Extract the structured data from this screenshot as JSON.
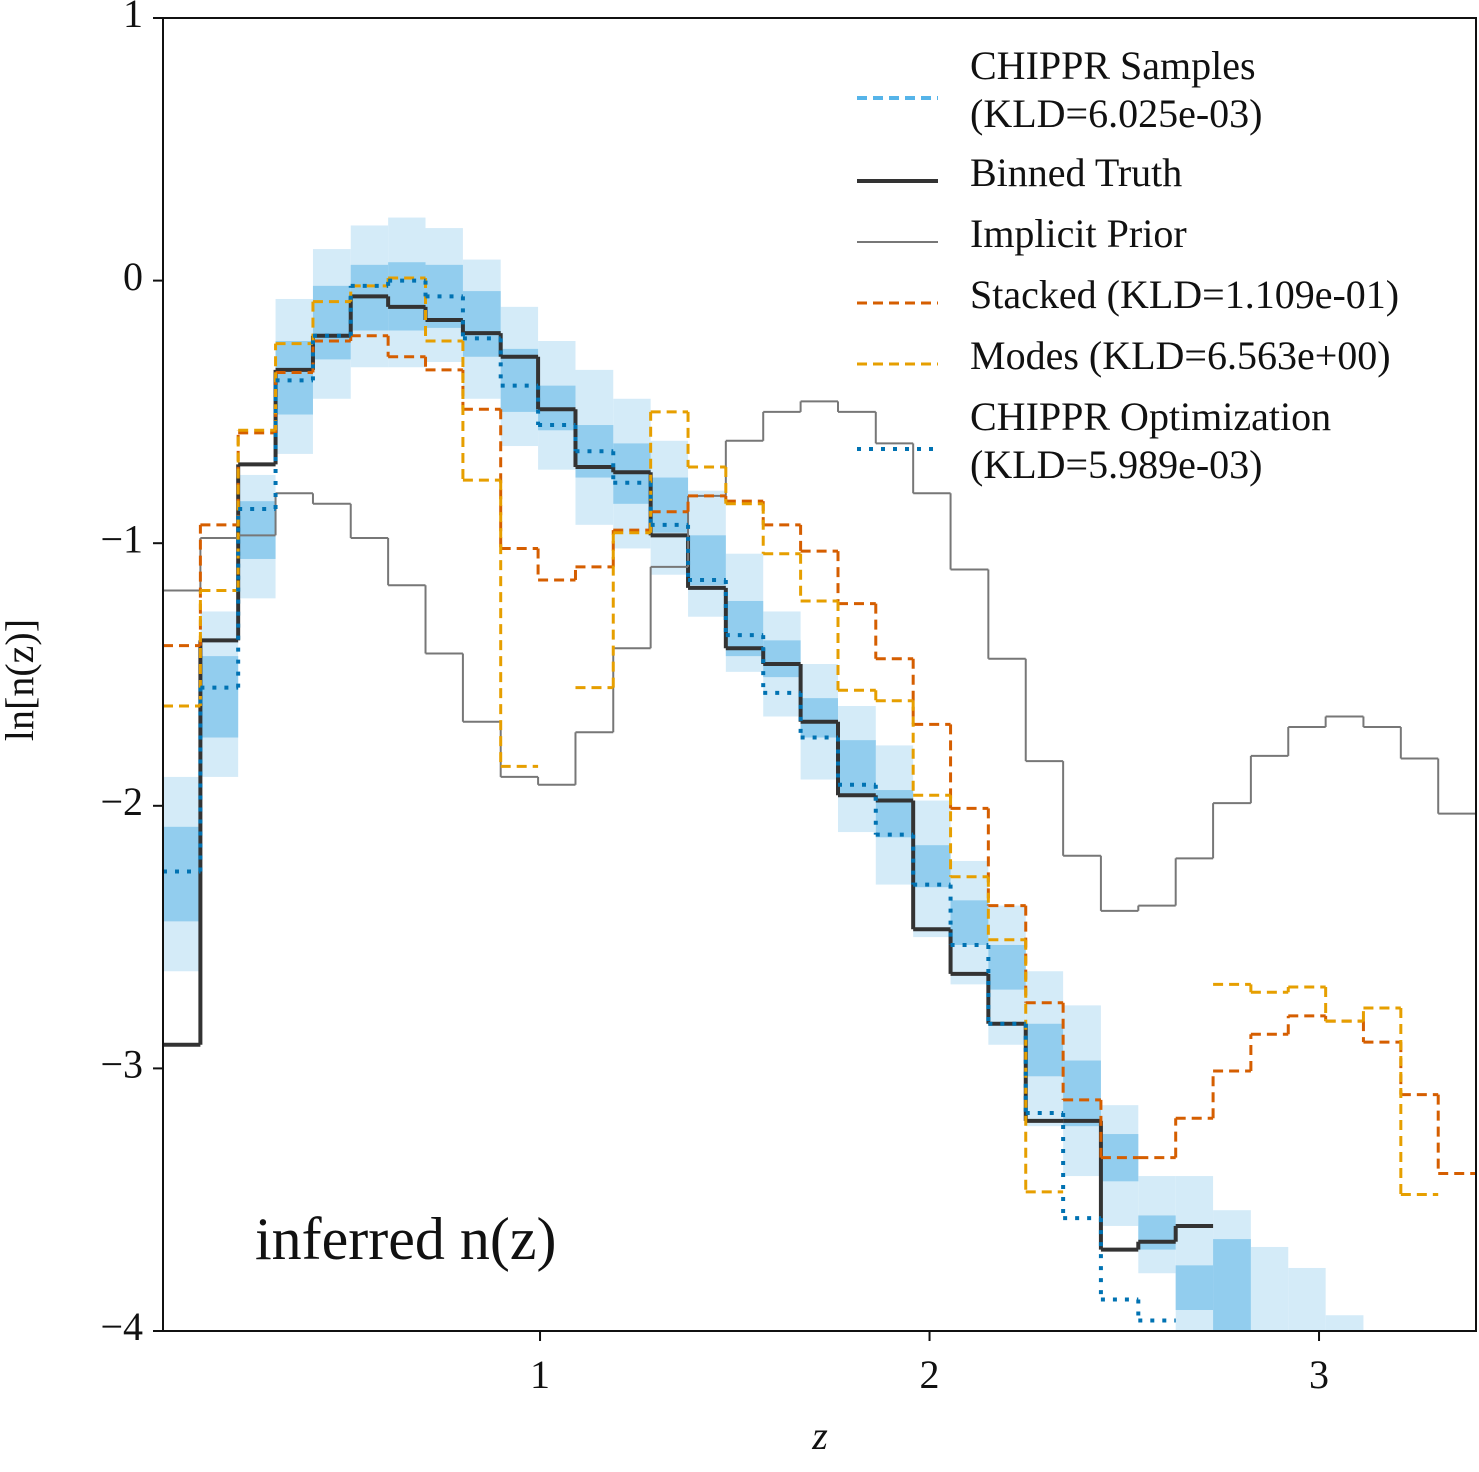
{
  "chart_data": {
    "type": "step",
    "x_label": "z",
    "y_label": "ln[n(z)]",
    "annotation": "inferred n(z)",
    "legend": "upper right",
    "xlim": [
      0.032,
      3.403
    ],
    "ylim": [
      -4,
      1
    ],
    "xticks": [
      1,
      2,
      3
    ],
    "yticks": [
      1,
      0,
      {
        "value": -1,
        "label": "−1"
      },
      {
        "value": -2,
        "label": "−2"
      },
      {
        "value": -3,
        "label": "−3"
      },
      {
        "value": -4,
        "label": "−4"
      }
    ],
    "bin_edges": [
      0.032,
      0.128,
      0.225,
      0.321,
      0.417,
      0.514,
      0.61,
      0.706,
      0.802,
      0.899,
      0.995,
      1.091,
      1.188,
      1.284,
      1.38,
      1.477,
      1.573,
      1.669,
      1.765,
      1.862,
      1.958,
      2.054,
      2.151,
      2.247,
      2.343,
      2.44,
      2.536,
      2.632,
      2.728,
      2.825,
      2.921,
      3.017,
      3.114,
      3.21,
      3.306,
      3.403
    ],
    "series": [
      {
        "name": "CHIPPR Samples\n(KLD=6.025e-03)",
        "color": "#56b4e9",
        "style": "dashed",
        "bands": [
          {
            "color": "#d4ebf8",
            "lower": [
              -2.63,
              -1.89,
              -1.21,
              -0.66,
              -0.45,
              -0.33,
              -0.33,
              -0.31,
              -0.45,
              -0.63,
              -0.72,
              -0.93,
              -1.02,
              -1.12,
              -1.28,
              -1.49,
              -1.66,
              -1.9,
              -2.1,
              -2.3,
              -2.5,
              -2.68,
              -2.91,
              -3.22,
              -3.41,
              -3.6,
              -3.78,
              -4,
              -4,
              -4,
              -4,
              -4,
              null,
              null,
              null
            ],
            "upper": [
              -1.89,
              -1.26,
              -0.74,
              -0.07,
              0.12,
              0.21,
              0.24,
              0.2,
              0.08,
              -0.1,
              -0.23,
              -0.34,
              -0.45,
              -0.61,
              -0.8,
              -1.04,
              -1.26,
              -1.46,
              -1.62,
              -1.77,
              -1.98,
              -2.21,
              -2.38,
              -2.63,
              -2.76,
              -3.14,
              -3.41,
              -3.41,
              -3.54,
              -3.68,
              -3.76,
              -3.94,
              null,
              null,
              null
            ]
          },
          {
            "color": "#92cdee",
            "lower": [
              -2.44,
              -1.74,
              -1.06,
              -0.51,
              -0.3,
              -0.19,
              -0.19,
              -0.18,
              -0.29,
              -0.5,
              -0.57,
              -0.75,
              -0.85,
              -0.96,
              -1.16,
              -1.43,
              -1.51,
              -1.74,
              -1.96,
              -2.12,
              -2.31,
              -2.53,
              -2.7,
              -3.03,
              -3.22,
              -3.43,
              -3.69,
              -3.92,
              -4,
              null,
              null,
              null,
              null,
              null,
              null
            ],
            "upper": [
              -2.08,
              -1.43,
              -0.84,
              -0.23,
              -0.02,
              0.06,
              0.07,
              0.06,
              -0.04,
              -0.26,
              -0.4,
              -0.55,
              -0.62,
              -0.75,
              -0.97,
              -1.22,
              -1.37,
              -1.59,
              -1.75,
              -1.94,
              -2.15,
              -2.36,
              -2.53,
              -2.83,
              -2.97,
              -3.25,
              -3.56,
              -3.75,
              -3.65,
              null,
              null,
              null,
              null,
              null,
              null
            ]
          }
        ]
      },
      {
        "name": "Binned Truth",
        "color": "#333333",
        "style": "solid",
        "width": 4,
        "values": [
          -2.91,
          -1.37,
          -0.7,
          -0.34,
          -0.21,
          -0.06,
          -0.1,
          -0.15,
          -0.2,
          -0.29,
          -0.49,
          -0.71,
          -0.73,
          -0.97,
          -1.17,
          -1.4,
          -1.46,
          -1.68,
          -1.96,
          -1.98,
          -2.47,
          -2.64,
          -2.83,
          -3.2,
          -3.2,
          -3.69,
          -3.66,
          -3.6,
          null,
          null,
          null,
          null,
          null,
          null,
          null
        ]
      },
      {
        "name": "Implicit Prior",
        "color": "#777777",
        "style": "solid",
        "width": 2,
        "values": [
          -1.18,
          -0.98,
          -0.97,
          -0.81,
          -0.85,
          -0.98,
          -1.16,
          -1.42,
          -1.68,
          -1.89,
          -1.92,
          -1.72,
          -1.4,
          -1.09,
          -0.82,
          -0.61,
          -0.5,
          -0.46,
          -0.5,
          -0.62,
          -0.81,
          -1.1,
          -1.44,
          -1.83,
          -2.19,
          -2.4,
          -2.38,
          -2.2,
          -1.99,
          -1.81,
          -1.7,
          -1.66,
          -1.7,
          -1.82,
          -2.03
        ]
      },
      {
        "name": "Stacked (KLD=1.109e-01)",
        "color": "#d55e00",
        "style": "dashed",
        "width": 3,
        "values": [
          -1.39,
          -0.93,
          -0.58,
          -0.35,
          -0.23,
          -0.21,
          -0.29,
          -0.34,
          -0.49,
          -1.02,
          -1.14,
          -1.09,
          -0.95,
          -0.88,
          -0.82,
          -0.84,
          -0.93,
          -1.03,
          -1.23,
          -1.44,
          -1.69,
          -2.01,
          -2.38,
          -2.75,
          -3.12,
          -3.34,
          -3.34,
          -3.19,
          -3.01,
          -2.87,
          -2.8,
          -2.82,
          -2.9,
          -3.1,
          -3.4
        ]
      },
      {
        "name": "Modes (KLD=6.563e+00)",
        "color": "#e69f00",
        "style": "dashed",
        "width": 3,
        "values": [
          -1.62,
          -1.18,
          -0.57,
          -0.24,
          -0.08,
          -0.02,
          0.01,
          -0.23,
          -0.76,
          -1.85,
          null,
          -1.55,
          -0.96,
          -0.5,
          -0.71,
          -0.85,
          -1.04,
          -1.22,
          -1.56,
          -1.6,
          -1.96,
          -2.27,
          -2.51,
          -3.47,
          null,
          null,
          null,
          null,
          -2.68,
          -2.71,
          -2.69,
          -2.82,
          -2.77,
          -3.48,
          null
        ]
      },
      {
        "name": "CHIPPR Optimization\n(KLD=5.989e-03)",
        "color": "#0072b2",
        "style": "dotted",
        "width": 4,
        "values": [
          -2.25,
          -1.55,
          -0.87,
          -0.38,
          -0.21,
          -0.02,
          0.0,
          -0.06,
          -0.22,
          -0.4,
          -0.55,
          -0.65,
          -0.77,
          -0.93,
          -1.14,
          -1.35,
          -1.57,
          -1.74,
          -1.92,
          -2.11,
          -2.3,
          -2.53,
          -2.83,
          -3.17,
          -3.57,
          -3.88,
          -3.96,
          null,
          null,
          null,
          null,
          null,
          null,
          null,
          null
        ]
      }
    ]
  }
}
